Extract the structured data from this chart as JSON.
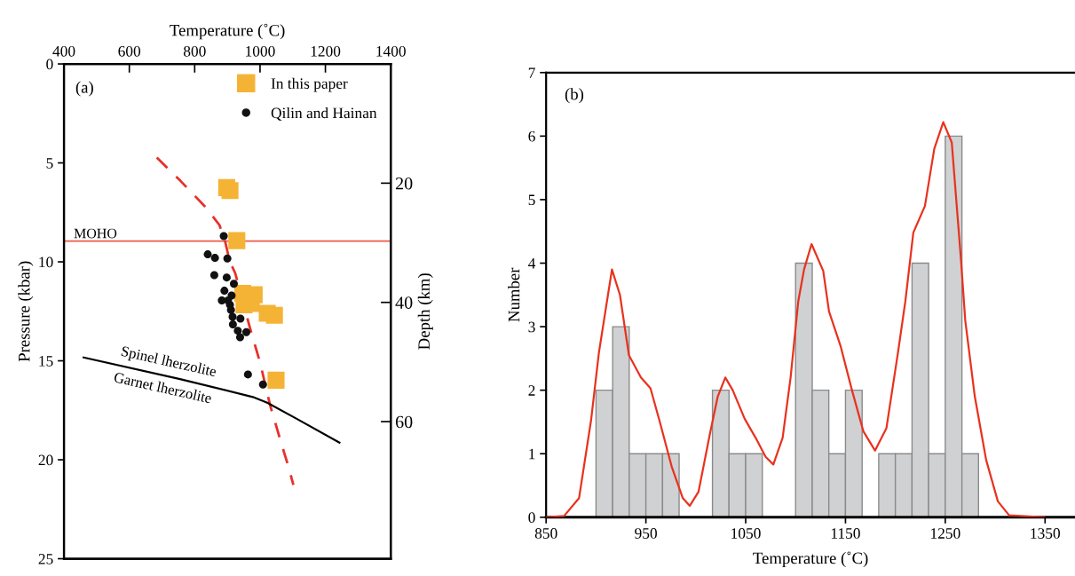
{
  "chart_data": [
    {
      "type": "scatter",
      "xlabel": "Temperature (˚C)",
      "ylabel": "Pressure (kbar)",
      "y2label": "Depth (km)",
      "xlim": [
        400,
        1400
      ],
      "xticks": [
        400,
        600,
        800,
        1000,
        1200,
        1400
      ],
      "ylim": [
        25,
        0
      ],
      "yticks": [
        0,
        5,
        10,
        15,
        20,
        25
      ],
      "y2lim": [
        83,
        0
      ],
      "y2ticks": [
        20,
        40,
        60
      ],
      "legend": "top right",
      "series": [
        {
          "name": "In this paper",
          "type": "scatter",
          "marker": "square",
          "color": "#f5b335",
          "x": [
            898,
            908,
            929,
            947,
            982,
            951,
            973,
            1022,
            1044,
            1049
          ],
          "values": [
            6.25,
            6.4,
            8.93,
            11.59,
            11.66,
            12.17,
            12.1,
            12.6,
            12.7,
            15.98
          ]
        },
        {
          "name": "Qilin and Hainan",
          "type": "scatter",
          "marker": "circle",
          "color": "#111111",
          "x": [
            889,
            840,
            862,
            900,
            860,
            898,
            920,
            891,
            913,
            883,
            902,
            908,
            911,
            916,
            940,
            917,
            932,
            958,
            939,
            963,
            1009
          ],
          "values": [
            8.7,
            9.62,
            9.8,
            9.83,
            10.67,
            10.79,
            11.11,
            11.46,
            11.7,
            11.95,
            11.95,
            12.17,
            12.43,
            12.78,
            12.87,
            13.16,
            13.48,
            13.55,
            13.81,
            15.69,
            16.2
          ]
        },
        {
          "type": "line",
          "line_style": "dashed",
          "color": "#e8302a",
          "x": [
            684,
            756,
            836,
            876,
            893,
            907,
            924,
            969,
            1000,
            1031,
            1062,
            1089,
            1102
          ],
          "values": [
            4.73,
            5.9,
            7.28,
            8.15,
            8.95,
            9.97,
            10.57,
            13.33,
            15.08,
            17.26,
            19.0,
            20.47,
            21.27
          ]
        },
        {
          "type": "line",
          "line_style": "solid",
          "color": "#000000",
          "x": [
            460,
            755,
            978,
            1022,
            1111,
            1243
          ],
          "values": [
            14.83,
            15.92,
            16.83,
            17.12,
            17.92,
            19.13
          ]
        }
      ],
      "ref_lines": [
        {
          "axis": "y",
          "value": 8.95,
          "label": "MOHO",
          "color": "#f05a4a"
        }
      ],
      "annotations": [
        "(a)",
        "Spinel lherzolite",
        "Garnet lherzolite"
      ]
    },
    {
      "type": "histogram",
      "xlabel": "Temperature (˚C)",
      "ylabel": "Number",
      "color": "#d0d1d3",
      "bins": [
        900,
        916.7,
        933.3,
        950,
        966.7,
        983.3,
        1000,
        1016.7,
        1033.3,
        1050,
        1066.7,
        1083.3,
        1100,
        1116.7,
        1133.3,
        1150,
        1166.7,
        1183.3,
        1200,
        1216.7,
        1233.3,
        1250,
        1266.7,
        1283.3
      ],
      "values": [
        2,
        3,
        1,
        1,
        1,
        0,
        0,
        2,
        1,
        1,
        0,
        0,
        4,
        2,
        1,
        2,
        0,
        1,
        1,
        4,
        1,
        6,
        1
      ],
      "xlim": [
        850,
        1380
      ],
      "xticks": [
        850,
        950,
        1050,
        1150,
        1250,
        1350
      ],
      "ylim": [
        0,
        7
      ],
      "yticks": [
        0,
        1,
        2,
        3,
        4,
        5,
        6,
        7
      ],
      "series": [
        {
          "type": "line",
          "color": "#e8321e",
          "x": [
            850,
            868,
            883,
            895,
            903,
            916,
            924,
            933,
            945,
            954.6,
            964,
            975.8,
            987,
            994,
            1002.7,
            1014,
            1022,
            1029.6,
            1037,
            1049,
            1060,
            1070,
            1077.7,
            1087,
            1095,
            1102.7,
            1108.5,
            1116,
            1127.7,
            1133.5,
            1145,
            1156.5,
            1168,
            1179.6,
            1191,
            1202.7,
            1210,
            1218,
            1229.6,
            1239,
            1248,
            1256.5,
            1266,
            1270,
            1279.6,
            1291,
            1302.7,
            1314,
            1348.8
          ],
          "values": [
            0,
            0.02,
            0.3,
            1.52,
            2.6,
            3.9,
            3.5,
            2.55,
            2.2,
            2.03,
            1.5,
            0.8,
            0.3,
            0.18,
            0.4,
            1.3,
            1.9,
            2.2,
            2.0,
            1.55,
            1.25,
            0.95,
            0.83,
            1.25,
            2.2,
            3.4,
            3.9,
            4.3,
            3.88,
            3.24,
            2.7,
            2.0,
            1.35,
            1.05,
            1.4,
            2.6,
            3.4,
            4.48,
            4.9,
            5.8,
            6.22,
            5.9,
            4.0,
            3.1,
            1.9,
            0.9,
            0.25,
            0.03,
            0
          ]
        }
      ],
      "annotations": [
        "(b)"
      ]
    }
  ]
}
